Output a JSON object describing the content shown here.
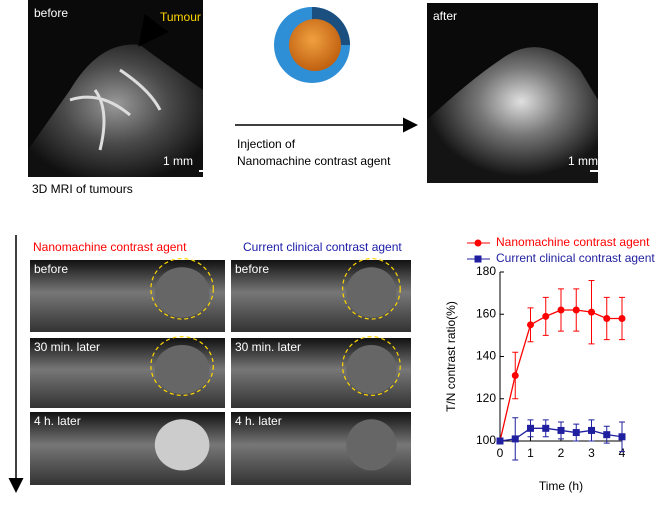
{
  "top": {
    "before_label": "before",
    "tumour_label": "Tumour",
    "scale_left": "1 mm",
    "caption": "3D MRI of tumours",
    "injection_line1": "Injection of",
    "injection_line2": "Nanomachine contrast agent",
    "after_label": "after",
    "scale_right": "1 mm"
  },
  "panels": {
    "left": {
      "header": "Nanomachine contrast agent",
      "rows": [
        "before",
        "30 min. later",
        "4 h. later"
      ]
    },
    "right": {
      "header": "Current clinical contrast agent",
      "rows": [
        "before",
        "30 min. later",
        "4 h. later"
      ]
    }
  },
  "chart_data": {
    "type": "line",
    "xlabel": "Time (h)",
    "ylabel": "T/N contrast ratio(%)",
    "x": [
      0,
      0.5,
      1,
      1.5,
      2,
      2.5,
      3,
      3.5,
      4
    ],
    "series": [
      {
        "name": "Nanomachine contrast agent",
        "color": "#ff0000",
        "marker": "circle",
        "values": [
          100,
          131,
          155,
          159,
          162,
          162,
          161,
          158,
          158
        ],
        "errors": [
          0,
          11,
          8,
          9,
          10,
          10,
          15,
          10,
          10
        ]
      },
      {
        "name": "Current clinical contrast agent",
        "color": "#1f1f9f",
        "marker": "square",
        "values": [
          100,
          101,
          106,
          106,
          105,
          104,
          105,
          103,
          102
        ],
        "errors": [
          0,
          10,
          4,
          4,
          4,
          4,
          5,
          4,
          7
        ]
      }
    ],
    "xlim": [
      0,
      4
    ],
    "xticks": [
      0,
      1,
      2,
      3,
      4
    ],
    "ylim": [
      100,
      180
    ],
    "yticks": [
      100,
      120,
      140,
      160,
      180
    ],
    "legend": "top"
  }
}
